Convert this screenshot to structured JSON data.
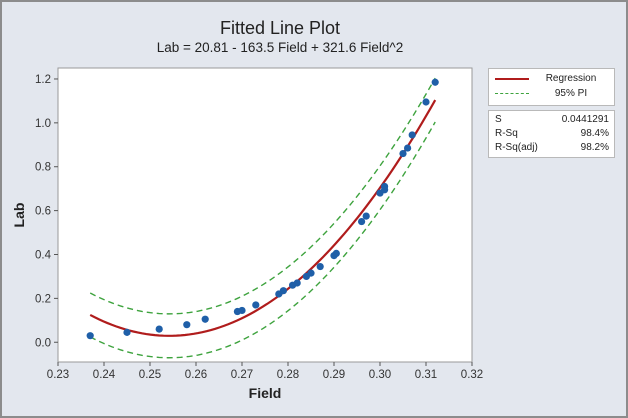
{
  "chart_data": {
    "type": "scatter",
    "title": "Fitted Line Plot",
    "subtitle": "Lab = 20.81 - 163.5 Field + 321.6 Field^2",
    "xlabel": "Field",
    "ylabel": "Lab",
    "xlim": [
      0.23,
      0.32
    ],
    "ylim": [
      -0.09,
      1.25
    ],
    "xticks": [
      "0.23",
      "0.24",
      "0.25",
      "0.26",
      "0.27",
      "0.28",
      "0.29",
      "0.30",
      "0.31",
      "0.32"
    ],
    "xtick_values": [
      0.23,
      0.24,
      0.25,
      0.26,
      0.27,
      0.28,
      0.29,
      0.3,
      0.31,
      0.32
    ],
    "yticks": [
      "0.0",
      "0.2",
      "0.4",
      "0.6",
      "0.8",
      "1.0",
      "1.2"
    ],
    "ytick_values": [
      0.0,
      0.2,
      0.4,
      0.6,
      0.8,
      1.0,
      1.2
    ],
    "points": [
      {
        "x": 0.237,
        "y": 0.03
      },
      {
        "x": 0.245,
        "y": 0.045
      },
      {
        "x": 0.252,
        "y": 0.06
      },
      {
        "x": 0.258,
        "y": 0.08
      },
      {
        "x": 0.262,
        "y": 0.105
      },
      {
        "x": 0.269,
        "y": 0.14
      },
      {
        "x": 0.27,
        "y": 0.145
      },
      {
        "x": 0.273,
        "y": 0.17
      },
      {
        "x": 0.278,
        "y": 0.22
      },
      {
        "x": 0.279,
        "y": 0.235
      },
      {
        "x": 0.281,
        "y": 0.26
      },
      {
        "x": 0.282,
        "y": 0.27
      },
      {
        "x": 0.284,
        "y": 0.3
      },
      {
        "x": 0.285,
        "y": 0.315
      },
      {
        "x": 0.287,
        "y": 0.345
      },
      {
        "x": 0.29,
        "y": 0.395
      },
      {
        "x": 0.2905,
        "y": 0.405
      },
      {
        "x": 0.296,
        "y": 0.55
      },
      {
        "x": 0.297,
        "y": 0.575
      },
      {
        "x": 0.3,
        "y": 0.68
      },
      {
        "x": 0.301,
        "y": 0.695
      },
      {
        "x": 0.301,
        "y": 0.71
      },
      {
        "x": 0.305,
        "y": 0.86
      },
      {
        "x": 0.306,
        "y": 0.885
      },
      {
        "x": 0.307,
        "y": 0.945
      },
      {
        "x": 0.31,
        "y": 1.095
      },
      {
        "x": 0.312,
        "y": 1.185
      }
    ],
    "fit": {
      "intercept": 20.81,
      "b1": -163.5,
      "b2": 321.6,
      "x_range": [
        0.237,
        0.312
      ]
    },
    "pi_halfwidth": 0.1,
    "series": [
      {
        "name": "Regression",
        "color": "#b01c1c",
        "style": "solid"
      },
      {
        "name": "95% PI",
        "color": "#3ea33e",
        "style": "dashed"
      }
    ],
    "point_color": "#1f5fa8",
    "legend_position": "right",
    "grid": false
  },
  "stats": [
    {
      "name": "S",
      "value": "0.0441291"
    },
    {
      "name": "R-Sq",
      "value": "98.4%"
    },
    {
      "name": "R-Sq(adj)",
      "value": "98.2%"
    }
  ]
}
